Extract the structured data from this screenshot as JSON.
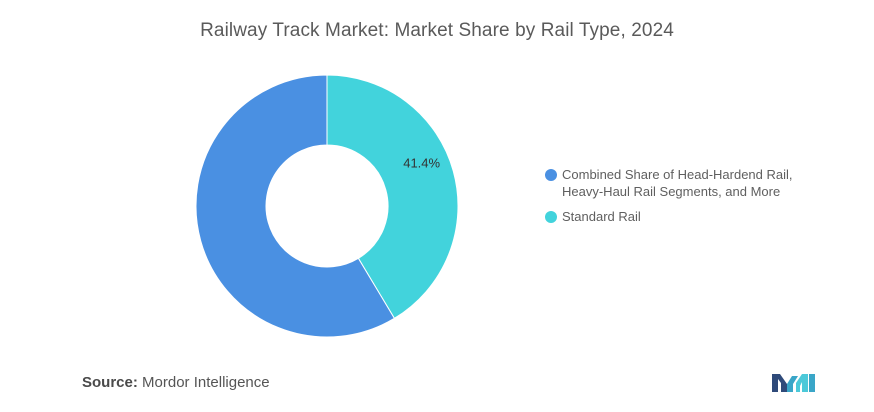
{
  "title": "Railway Track Market: Market Share by Rail Type, 2024",
  "source": {
    "label": "Source:",
    "text": "Mordor Intelligence"
  },
  "chart_data": {
    "type": "pie",
    "title": "Railway Track Market: Market Share by Rail Type, 2024",
    "donut": true,
    "legend_position": "right",
    "series": [
      {
        "name": "Combined Share of Head-Hardend Rail, Heavy-Haul Rail Segments, and More",
        "legend_lines": [
          "Combined Share of Head-Hardend Rail,",
          "Heavy-Haul Rail Segments, and More"
        ],
        "value": 58.6,
        "color": "#4a90e2",
        "data_label": ""
      },
      {
        "name": "Standard Rail",
        "legend_lines": [
          "Standard Rail"
        ],
        "value": 41.4,
        "color": "#42d3dc",
        "data_label": "41.4%"
      }
    ]
  },
  "logo": {
    "name": "mordor-intelligence-logo",
    "colors": [
      "#2f4a7a",
      "#3aa6c8",
      "#4cc9d9"
    ]
  }
}
